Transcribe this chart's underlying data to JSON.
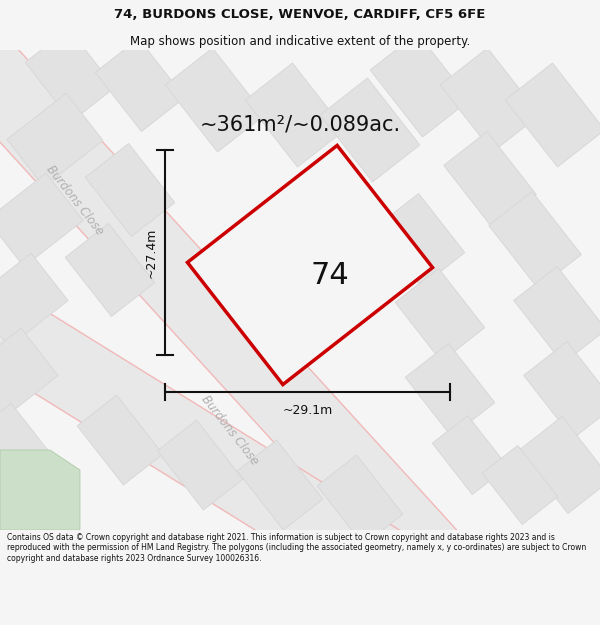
{
  "title_line1": "74, BURDONS CLOSE, WENVOE, CARDIFF, CF5 6FE",
  "title_line2": "Map shows position and indicative extent of the property.",
  "area_text": "~361m²/~0.089ac.",
  "label_74": "74",
  "dim_height": "~27.4m",
  "dim_width": "~29.1m",
  "road_label_topleft": "Burdons Close",
  "road_label_bottom": "Burdons Close",
  "footer_text": "Contains OS data © Crown copyright and database right 2021. This information is subject to Crown copyright and database rights 2023 and is reproduced with the permission of HM Land Registry. The polygons (including the associated geometry, namely x, y co-ordinates) are subject to Crown copyright and database rights 2023 Ordnance Survey 100026316.",
  "bg_color": "#f5f5f5",
  "map_bg": "#f0f0f0",
  "road_fill": "#e8e8e8",
  "road_edge": "#f2b8b8",
  "plot_stroke": "#cc0000",
  "plot_fill": "#f5f5f5",
  "block_fill": "#e2e2e2",
  "block_edge": "#d8d8d8",
  "dim_color": "#111111",
  "text_color": "#111111",
  "road_text_color": "#b0b0b0",
  "footer_bg": "#ffffff",
  "green_fill": "#ccdfc8"
}
